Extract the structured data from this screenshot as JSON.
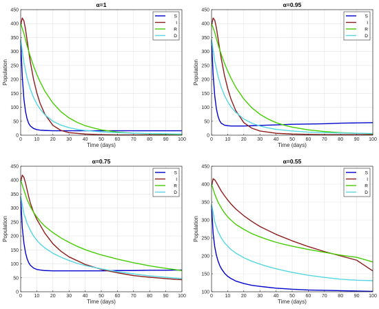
{
  "chart_data": [
    {
      "type": "line",
      "title": "α=1",
      "xlabel": "Time (days)",
      "ylabel": "Population",
      "xlim": [
        0,
        100
      ],
      "ylim": [
        0,
        450
      ],
      "xticks": [
        0,
        10,
        20,
        30,
        40,
        50,
        60,
        70,
        80,
        90,
        100
      ],
      "yticks": [
        0,
        50,
        100,
        150,
        200,
        250,
        300,
        350,
        400,
        450
      ],
      "grid": true,
      "legend": "top-right",
      "series": [
        {
          "name": "S",
          "color": "#0000cc",
          "x": [
            0,
            1,
            2,
            3,
            4,
            5,
            6,
            8,
            10,
            12,
            15,
            20,
            25,
            30,
            40,
            50,
            60,
            70,
            80,
            90,
            100
          ],
          "y": [
            340,
            210,
            130,
            85,
            58,
            42,
            33,
            24,
            20,
            18,
            17,
            16,
            16,
            16,
            16,
            16,
            16,
            16,
            16,
            16,
            16
          ]
        },
        {
          "name": "I",
          "color": "#8b1a1a",
          "x": [
            0,
            1,
            2,
            3,
            4,
            5,
            6,
            8,
            10,
            12,
            15,
            20,
            25,
            30,
            40,
            50,
            60,
            70,
            80,
            90,
            100
          ],
          "y": [
            395,
            420,
            410,
            380,
            340,
            300,
            262,
            200,
            152,
            115,
            75,
            35,
            17,
            9,
            4,
            2,
            1,
            1,
            1,
            1,
            1
          ]
        },
        {
          "name": "R",
          "color": "#44cc00",
          "x": [
            0,
            2,
            4,
            6,
            8,
            10,
            12,
            15,
            20,
            25,
            30,
            35,
            40,
            45,
            50,
            60,
            70,
            80,
            90,
            100
          ],
          "y": [
            400,
            365,
            320,
            282,
            248,
            218,
            192,
            158,
            115,
            84,
            62,
            46,
            34,
            26,
            19,
            11,
            7,
            5,
            4,
            3
          ]
        },
        {
          "name": "D",
          "color": "#55d6e0",
          "x": [
            0,
            2,
            4,
            6,
            8,
            10,
            12,
            15,
            20,
            25,
            30,
            35,
            40,
            50,
            60,
            70,
            80,
            90,
            100
          ],
          "y": [
            345,
            260,
            205,
            165,
            135,
            112,
            94,
            73,
            50,
            36,
            27,
            21,
            17,
            12,
            9,
            7,
            6,
            5,
            4
          ]
        }
      ]
    },
    {
      "type": "line",
      "title": "α=0.95",
      "xlabel": "Time (days)",
      "ylabel": "Population",
      "xlim": [
        0,
        100
      ],
      "ylim": [
        0,
        450
      ],
      "xticks": [
        0,
        10,
        20,
        30,
        40,
        50,
        60,
        70,
        80,
        90,
        100
      ],
      "yticks": [
        0,
        50,
        100,
        150,
        200,
        250,
        300,
        350,
        400,
        450
      ],
      "grid": true,
      "legend": "top-right",
      "series": [
        {
          "name": "S",
          "color": "#0000cc",
          "x": [
            0,
            1,
            2,
            3,
            4,
            5,
            6,
            8,
            10,
            12,
            15,
            20,
            25,
            30,
            40,
            50,
            60,
            70,
            80,
            90,
            100
          ],
          "y": [
            340,
            215,
            140,
            95,
            68,
            52,
            43,
            36,
            34,
            33,
            33,
            33,
            34,
            35,
            37,
            39,
            40,
            41,
            43,
            44,
            45
          ]
        },
        {
          "name": "I",
          "color": "#8b1a1a",
          "x": [
            0,
            1,
            2,
            3,
            4,
            5,
            6,
            8,
            10,
            12,
            15,
            20,
            25,
            30,
            40,
            50,
            60,
            70,
            80,
            90,
            100
          ],
          "y": [
            395,
            420,
            412,
            385,
            348,
            310,
            275,
            215,
            168,
            130,
            88,
            45,
            25,
            15,
            7,
            4,
            3,
            2,
            2,
            2,
            2
          ]
        },
        {
          "name": "R",
          "color": "#44cc00",
          "x": [
            0,
            2,
            4,
            6,
            8,
            10,
            12,
            15,
            20,
            25,
            30,
            35,
            40,
            45,
            50,
            60,
            70,
            80,
            90,
            100
          ],
          "y": [
            400,
            368,
            325,
            290,
            258,
            230,
            205,
            172,
            130,
            98,
            75,
            58,
            45,
            36,
            29,
            19,
            13,
            9,
            7,
            5
          ]
        },
        {
          "name": "D",
          "color": "#55d6e0",
          "x": [
            0,
            2,
            4,
            6,
            8,
            10,
            12,
            15,
            20,
            25,
            30,
            35,
            40,
            50,
            60,
            70,
            80,
            90,
            100
          ],
          "y": [
            345,
            265,
            212,
            172,
            143,
            120,
            102,
            82,
            58,
            43,
            33,
            26,
            21,
            15,
            11,
            9,
            8,
            7,
            6
          ]
        }
      ]
    },
    {
      "type": "line",
      "title": "α=0.75",
      "xlabel": "Time (days)",
      "ylabel": "Population",
      "xlim": [
        0,
        100
      ],
      "ylim": [
        0,
        450
      ],
      "xticks": [
        0,
        10,
        20,
        30,
        40,
        50,
        60,
        70,
        80,
        90,
        100
      ],
      "yticks": [
        0,
        50,
        100,
        150,
        200,
        250,
        300,
        350,
        400,
        450
      ],
      "grid": true,
      "legend": "top-right",
      "series": [
        {
          "name": "S",
          "color": "#0000cc",
          "x": [
            0,
            1,
            2,
            3,
            4,
            5,
            6,
            8,
            10,
            12,
            15,
            20,
            25,
            30,
            40,
            50,
            60,
            70,
            80,
            90,
            100
          ],
          "y": [
            340,
            230,
            175,
            140,
            118,
            104,
            95,
            85,
            80,
            78,
            76,
            75,
            75,
            75,
            75,
            75,
            76,
            76,
            77,
            77,
            78
          ]
        },
        {
          "name": "I",
          "color": "#8b1a1a",
          "x": [
            0,
            1,
            2,
            3,
            4,
            5,
            6,
            8,
            10,
            12,
            15,
            20,
            25,
            30,
            40,
            50,
            60,
            70,
            80,
            90,
            100
          ],
          "y": [
            395,
            418,
            410,
            390,
            365,
            340,
            318,
            285,
            260,
            240,
            210,
            172,
            145,
            125,
            98,
            80,
            68,
            58,
            52,
            47,
            43
          ]
        },
        {
          "name": "R",
          "color": "#44cc00",
          "x": [
            0,
            2,
            4,
            6,
            8,
            10,
            12,
            15,
            20,
            25,
            30,
            35,
            40,
            45,
            50,
            60,
            70,
            80,
            90,
            100
          ],
          "y": [
            400,
            365,
            330,
            305,
            285,
            268,
            253,
            235,
            212,
            193,
            177,
            163,
            151,
            141,
            132,
            117,
            104,
            93,
            84,
            76
          ]
        },
        {
          "name": "D",
          "color": "#55d6e0",
          "x": [
            0,
            2,
            4,
            6,
            8,
            10,
            12,
            15,
            20,
            25,
            30,
            35,
            40,
            50,
            60,
            70,
            80,
            90,
            100
          ],
          "y": [
            345,
            280,
            245,
            220,
            200,
            185,
            172,
            157,
            138,
            124,
            112,
            102,
            94,
            82,
            72,
            64,
            57,
            52,
            47
          ]
        }
      ]
    },
    {
      "type": "line",
      "title": "α=0.55",
      "xlabel": "Time (days)",
      "ylabel": "Population",
      "xlim": [
        0,
        100
      ],
      "ylim": [
        100,
        450
      ],
      "xticks": [
        0,
        10,
        20,
        30,
        40,
        50,
        60,
        70,
        80,
        90,
        100
      ],
      "yticks": [
        100,
        150,
        200,
        250,
        300,
        350,
        400,
        450
      ],
      "grid": true,
      "legend": "top-right",
      "series": [
        {
          "name": "S",
          "color": "#0000cc",
          "x": [
            0,
            1,
            2,
            3,
            4,
            5,
            6,
            8,
            10,
            12,
            15,
            20,
            25,
            30,
            40,
            50,
            60,
            70,
            80,
            90,
            100
          ],
          "y": [
            340,
            262,
            225,
            202,
            186,
            174,
            165,
            152,
            143,
            137,
            130,
            123,
            118,
            115,
            110,
            107,
            105,
            104,
            103,
            102,
            101
          ]
        },
        {
          "name": "I",
          "color": "#8b1a1a",
          "x": [
            0,
            1,
            2,
            3,
            4,
            5,
            6,
            8,
            10,
            12,
            15,
            20,
            25,
            30,
            40,
            50,
            60,
            70,
            80,
            90,
            100
          ],
          "y": [
            395,
            415,
            412,
            405,
            397,
            389,
            381,
            368,
            356,
            345,
            331,
            312,
            296,
            282,
            260,
            242,
            226,
            212,
            200,
            188,
            158
          ]
        },
        {
          "name": "R",
          "color": "#44cc00",
          "x": [
            0,
            2,
            4,
            6,
            8,
            10,
            12,
            15,
            20,
            25,
            30,
            35,
            40,
            45,
            50,
            60,
            70,
            80,
            90,
            100
          ],
          "y": [
            400,
            372,
            350,
            334,
            320,
            309,
            300,
            288,
            274,
            262,
            253,
            245,
            238,
            232,
            227,
            218,
            210,
            202,
            196,
            183
          ]
        },
        {
          "name": "D",
          "color": "#55d6e0",
          "x": [
            0,
            2,
            4,
            6,
            8,
            10,
            12,
            15,
            20,
            25,
            30,
            35,
            40,
            50,
            60,
            70,
            80,
            90,
            100
          ],
          "y": [
            345,
            295,
            268,
            250,
            237,
            227,
            218,
            208,
            195,
            185,
            177,
            170,
            164,
            154,
            146,
            140,
            135,
            132,
            131
          ]
        }
      ]
    }
  ]
}
